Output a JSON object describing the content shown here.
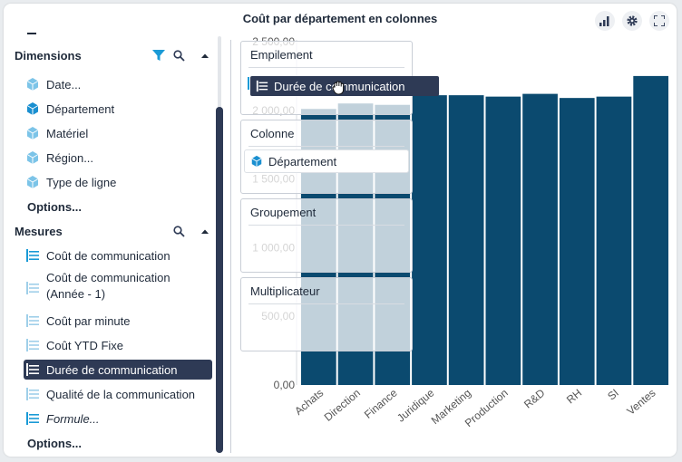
{
  "window": {
    "title": "Coût par département en colonnes"
  },
  "toolbar": {
    "chart_type_icon": "bar-chart-icon",
    "settings_icon": "gear-icon",
    "fullscreen_icon": "fullscreen-icon"
  },
  "sidebar": {
    "dimensions_label": "Dimensions",
    "dimensions": [
      {
        "label": "Date..."
      },
      {
        "label": "Département"
      },
      {
        "label": "Matériel"
      },
      {
        "label": "Région..."
      },
      {
        "label": "Type de ligne"
      }
    ],
    "dimensions_options": "Options...",
    "mesures_label": "Mesures",
    "mesures": [
      {
        "label": "Coût de communication"
      },
      {
        "label": "Coût de communication",
        "label2": "(Année - 1)"
      },
      {
        "label": "Coût par minute"
      },
      {
        "label": "Coût YTD Fixe"
      },
      {
        "label": "Durée de communication",
        "selected": true
      },
      {
        "label": "Qualité de la communication"
      },
      {
        "label": "Formule..."
      }
    ],
    "mesures_options": "Options..."
  },
  "dropzones": {
    "empilement": "Empilement",
    "colonne": "Colonne",
    "colonne_chip": "Département",
    "groupement": "Groupement",
    "multiplicateur": "Multiplicateur"
  },
  "drag_item": "Durée de communication",
  "colors": {
    "bar": "#0b4a6f",
    "accent": "#2e3a55",
    "filter": "#1a9ad6",
    "cube": "#7cc4e8"
  },
  "chart_data": {
    "type": "bar",
    "title": "Coût par département en colonnes",
    "categories": [
      "Achats",
      "Direction",
      "Finance",
      "Juridique",
      "Marketing",
      "Production",
      "R&D",
      "RH",
      "SI",
      "Ventes"
    ],
    "values": [
      2010,
      2050,
      2040,
      2110,
      2110,
      2100,
      2120,
      2090,
      2100,
      2250
    ],
    "ytick_labels": [
      "0,00",
      "500,00",
      "1 000,00",
      "1 500,00",
      "2 000,00",
      "2 500,00"
    ],
    "yticks": [
      0,
      500,
      1000,
      1500,
      2000,
      2500
    ],
    "ylim": [
      0,
      2500
    ],
    "xlabel": "",
    "ylabel": ""
  }
}
